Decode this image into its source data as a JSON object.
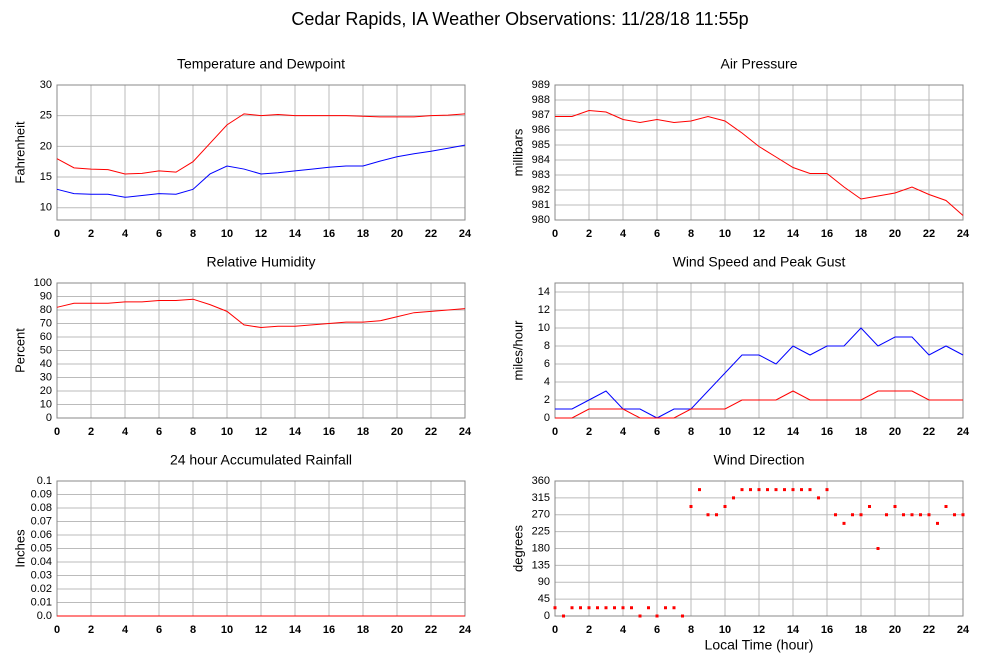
{
  "title": "Cedar Rapids, IA Weather Observations: 11/28/18 11:55p",
  "chart_data": [
    {
      "type": "line",
      "title": "Temperature and Dewpoint",
      "ylabel": "Fahrenheit",
      "x": [
        0,
        1,
        2,
        3,
        4,
        5,
        6,
        7,
        8,
        9,
        10,
        11,
        12,
        13,
        14,
        15,
        16,
        17,
        18,
        19,
        20,
        21,
        22,
        23,
        24
      ],
      "series": [
        {
          "color": "#ff0000",
          "values": [
            18,
            16.5,
            16.3,
            16.2,
            15.5,
            15.6,
            16,
            15.8,
            17.5,
            20.5,
            23.5,
            25.3,
            25,
            25.2,
            25,
            25,
            25,
            25,
            24.9,
            24.8,
            24.8,
            24.8,
            25,
            25.1,
            25.3
          ]
        },
        {
          "color": "#0000ff",
          "values": [
            13,
            12.3,
            12.2,
            12.2,
            11.7,
            12,
            12.3,
            12.2,
            13,
            15.5,
            16.8,
            16.3,
            15.5,
            15.7,
            16,
            16.3,
            16.6,
            16.8,
            16.8,
            17.6,
            18.3,
            18.8,
            19.2,
            19.7,
            20.2
          ]
        }
      ],
      "xlim": [
        0,
        24
      ],
      "xticks": [
        0,
        2,
        4,
        6,
        8,
        10,
        12,
        14,
        16,
        18,
        20,
        22,
        24
      ],
      "ylim": [
        8,
        30
      ],
      "yticks": [
        10,
        15,
        20,
        25,
        30
      ],
      "grid": true
    },
    {
      "type": "line",
      "title": "Air Pressure",
      "ylabel": "millibars",
      "x": [
        0,
        1,
        2,
        3,
        4,
        5,
        6,
        7,
        8,
        9,
        10,
        11,
        12,
        13,
        14,
        15,
        16,
        17,
        18,
        19,
        20,
        21,
        22,
        23,
        24
      ],
      "series": [
        {
          "color": "#ff0000",
          "values": [
            986.9,
            986.9,
            987.3,
            987.2,
            986.7,
            986.5,
            986.7,
            986.5,
            986.6,
            986.9,
            986.6,
            985.8,
            984.9,
            984.2,
            983.5,
            983.1,
            983.1,
            982.2,
            981.4,
            981.6,
            981.8,
            982.2,
            981.7,
            981.3,
            980.3
          ]
        }
      ],
      "xlim": [
        0,
        24
      ],
      "xticks": [
        0,
        2,
        4,
        6,
        8,
        10,
        12,
        14,
        16,
        18,
        20,
        22,
        24
      ],
      "ylim": [
        980,
        989
      ],
      "yticks": [
        980,
        981,
        982,
        983,
        984,
        985,
        986,
        987,
        988,
        989
      ],
      "grid": true
    },
    {
      "type": "line",
      "title": "Relative Humidity",
      "ylabel": "Percent",
      "x": [
        0,
        1,
        2,
        3,
        4,
        5,
        6,
        7,
        8,
        9,
        10,
        11,
        12,
        13,
        14,
        15,
        16,
        17,
        18,
        19,
        20,
        21,
        22,
        23,
        24
      ],
      "series": [
        {
          "color": "#ff0000",
          "values": [
            82,
            85,
            85,
            85,
            86,
            86,
            87,
            87,
            88,
            84,
            79,
            69,
            67,
            68,
            68,
            69,
            70,
            71,
            71,
            72,
            75,
            78,
            79,
            80,
            81
          ]
        }
      ],
      "xlim": [
        0,
        24
      ],
      "xticks": [
        0,
        2,
        4,
        6,
        8,
        10,
        12,
        14,
        16,
        18,
        20,
        22,
        24
      ],
      "ylim": [
        0,
        100
      ],
      "yticks": [
        0,
        10,
        20,
        30,
        40,
        50,
        60,
        70,
        80,
        90,
        100
      ],
      "grid": true
    },
    {
      "type": "line",
      "title": "Wind Speed and Peak Gust",
      "ylabel": "miles/hour",
      "x": [
        0,
        1,
        2,
        3,
        4,
        5,
        6,
        7,
        8,
        9,
        10,
        11,
        12,
        13,
        14,
        15,
        16,
        17,
        18,
        19,
        20,
        21,
        22,
        23,
        24
      ],
      "series": [
        {
          "color": "#0000ff",
          "values": [
            1,
            1,
            2,
            3,
            1,
            1,
            0,
            1,
            1,
            3,
            5,
            7,
            7,
            6,
            8,
            7,
            8,
            8,
            10,
            8,
            9,
            9,
            7,
            8,
            7
          ]
        },
        {
          "color": "#ff0000",
          "values": [
            0,
            0,
            1,
            1,
            1,
            0,
            0,
            0,
            1,
            1,
            1,
            2,
            2,
            2,
            3,
            2,
            2,
            2,
            2,
            3,
            3,
            3,
            2,
            2,
            2
          ]
        }
      ],
      "xlim": [
        0,
        24
      ],
      "xticks": [
        0,
        2,
        4,
        6,
        8,
        10,
        12,
        14,
        16,
        18,
        20,
        22,
        24
      ],
      "ylim": [
        0,
        15
      ],
      "yticks": [
        0,
        2,
        4,
        6,
        8,
        10,
        12,
        14
      ],
      "grid": true
    },
    {
      "type": "line",
      "title": "24 hour Accumulated Rainfall",
      "ylabel": "Inches",
      "x": [
        0,
        24
      ],
      "series": [
        {
          "color": "#ff0000",
          "values": [
            0,
            0
          ]
        }
      ],
      "xlim": [
        0,
        24
      ],
      "xticks": [
        0,
        2,
        4,
        6,
        8,
        10,
        12,
        14,
        16,
        18,
        20,
        22,
        24
      ],
      "ylim": [
        0,
        0.1
      ],
      "yticks": [
        {
          "value": 0,
          "label": "0.0"
        },
        0.01,
        0.02,
        0.03,
        0.04,
        0.05,
        0.06,
        0.07,
        0.08,
        0.09,
        0.1
      ],
      "grid": true
    },
    {
      "type": "scatter",
      "title": "Wind Direction",
      "ylabel": "degrees",
      "xlabel": "Local Time (hour)",
      "x": [
        0,
        0.5,
        1,
        1.5,
        2,
        2.5,
        3,
        3.5,
        4,
        4.5,
        5,
        5.5,
        6,
        6.5,
        7,
        7.5,
        8,
        8.5,
        9,
        9.5,
        10,
        10.5,
        11,
        11.5,
        12,
        12.5,
        13,
        13.5,
        14,
        14.5,
        15,
        15.5,
        16,
        16.5,
        17,
        17.5,
        18,
        18.5,
        19,
        19.5,
        20,
        20.5,
        21,
        21.5,
        22,
        22.5,
        23,
        23.5,
        24
      ],
      "series": [
        {
          "color": "#ff0000",
          "values": [
            22,
            0,
            22,
            22,
            22,
            22,
            22,
            22,
            22,
            22,
            0,
            22,
            0,
            22,
            22,
            0,
            292,
            337,
            270,
            270,
            292,
            315,
            337,
            337,
            337,
            337,
            337,
            337,
            337,
            337,
            337,
            315,
            337,
            270,
            247,
            270,
            270,
            292,
            180,
            270,
            292,
            270,
            270,
            270,
            270,
            247,
            292,
            270,
            270
          ]
        }
      ],
      "xlim": [
        0,
        24
      ],
      "xticks": [
        0,
        2,
        4,
        6,
        8,
        10,
        12,
        14,
        16,
        18,
        20,
        22,
        24
      ],
      "ylim": [
        0,
        360
      ],
      "yticks": [
        0,
        45,
        90,
        135,
        180,
        225,
        270,
        315,
        360
      ],
      "grid": true
    }
  ]
}
